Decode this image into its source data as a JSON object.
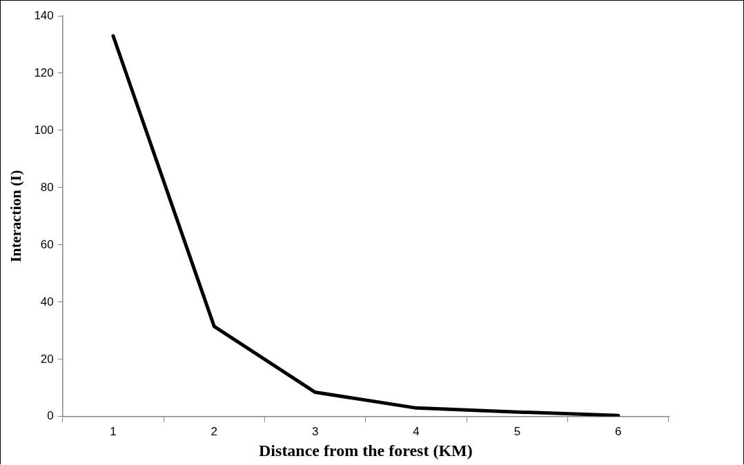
{
  "chart_data": {
    "type": "line",
    "xlabel": "Distance from the forest (KM)",
    "ylabel": "Interaction (I)",
    "categories": [
      "1",
      "2",
      "3",
      "4",
      "5",
      "6"
    ],
    "series": [
      {
        "color": "#000000",
        "values": [
          133,
          31.5,
          8.5,
          3,
          1.6,
          0.4
        ]
      }
    ],
    "ylim": [
      0,
      140
    ],
    "yticks": [
      0,
      20,
      40,
      60,
      80,
      100,
      120,
      140
    ],
    "marker": "none",
    "line_style": "solid"
  }
}
